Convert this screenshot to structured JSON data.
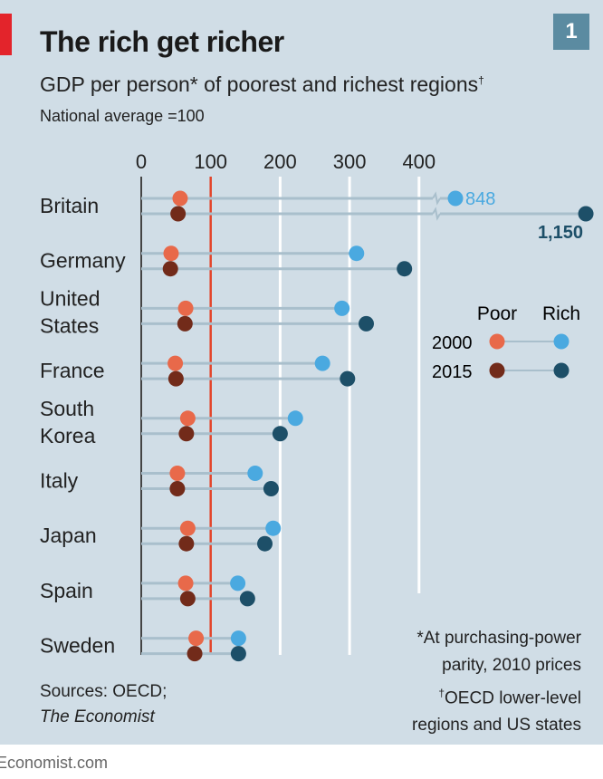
{
  "title": "The rich get richer",
  "badge": "1",
  "subtitle": "GDP per person* of poorest and richest regions",
  "subtitle_mark": "†",
  "unit_note": "National average =100",
  "sources_line1": "Sources: OECD;",
  "sources_line2": "The Economist",
  "note1_line1": "*At purchasing-power",
  "note1_line2": "parity, 2010 prices",
  "note2_mark": "†",
  "note2_line1": "OECD lower-level",
  "note2_line2": "regions and US states",
  "footer": "Economist.com",
  "colors": {
    "poor_2000": "#e8694a",
    "poor_2015": "#722b1a",
    "rich_2000": "#4aa9e0",
    "rich_2015": "#1d4f68",
    "reference": "#e3452b",
    "background": "#d0dde6"
  },
  "chart_data": {
    "type": "dot-range",
    "xlim": [
      0,
      400
    ],
    "x_ticks": [
      "0",
      "100",
      "200",
      "300",
      "400"
    ],
    "axis_break_after": 400,
    "reference_line": 100,
    "grid": true,
    "legend": {
      "placement": "right",
      "columns": [
        "Poor",
        "Rich"
      ],
      "rows": [
        "2000",
        "2015"
      ]
    },
    "categories": [
      [
        "Britain"
      ],
      [
        "Germany"
      ],
      [
        "United",
        "States"
      ],
      [
        "France"
      ],
      [
        "South",
        "Korea"
      ],
      [
        "Italy"
      ],
      [
        "Japan"
      ],
      [
        "Spain"
      ],
      [
        "Sweden"
      ]
    ],
    "series": [
      {
        "name": "Poor 2000",
        "values": [
          56,
          43,
          64,
          49,
          67,
          52,
          67,
          64,
          79
        ]
      },
      {
        "name": "Poor 2015",
        "values": [
          53,
          42,
          63,
          50,
          65,
          52,
          65,
          67,
          77
        ]
      },
      {
        "name": "Rich 2000",
        "values": [
          848,
          310,
          289,
          261,
          222,
          164,
          190,
          139,
          140
        ]
      },
      {
        "name": "Rich 2015",
        "values": [
          1150,
          379,
          324,
          297,
          200,
          187,
          178,
          153,
          140
        ]
      }
    ],
    "data_labels": {
      "britain_rich_2000": "848",
      "britain_rich_2015": "1,150"
    }
  }
}
